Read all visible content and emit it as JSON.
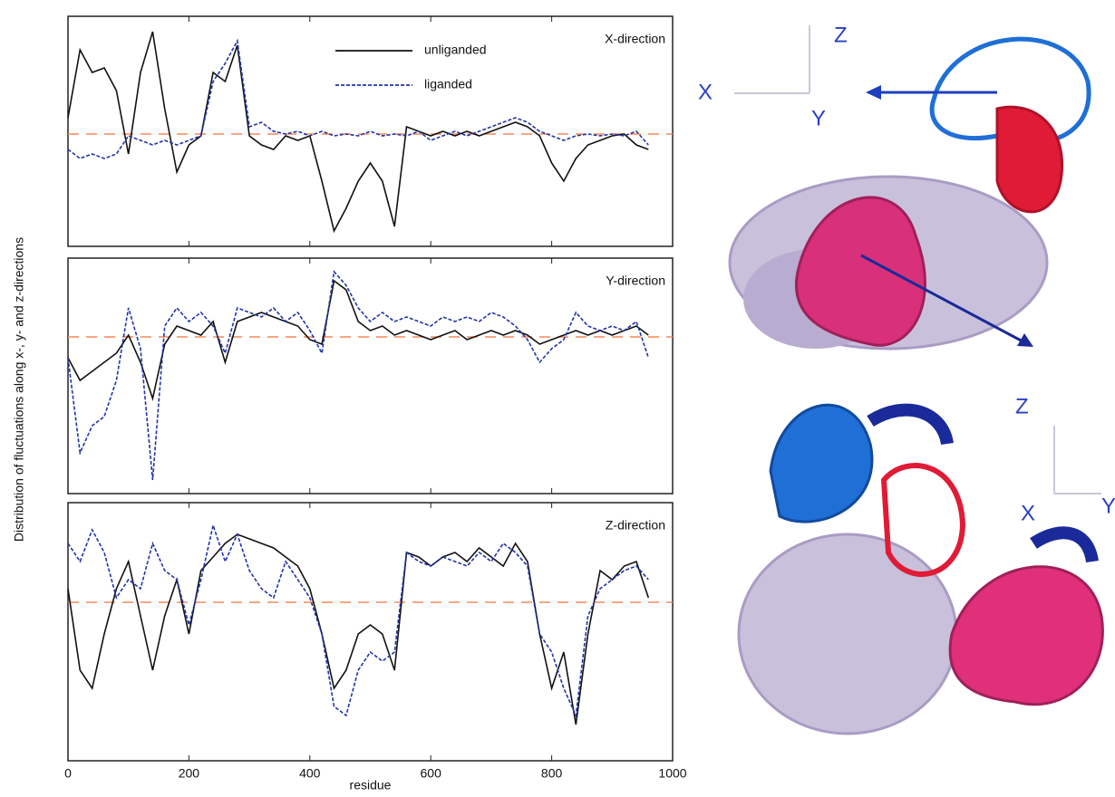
{
  "chart_data": [
    {
      "type": "line",
      "title": "X-direction",
      "x": [
        0,
        20,
        40,
        60,
        80,
        100,
        120,
        140,
        160,
        180,
        200,
        220,
        240,
        260,
        280,
        300,
        320,
        340,
        360,
        380,
        400,
        420,
        440,
        460,
        480,
        500,
        520,
        540,
        560,
        580,
        600,
        620,
        640,
        660,
        680,
        700,
        720,
        740,
        760,
        780,
        800,
        820,
        840,
        860,
        880,
        900,
        920,
        940,
        960
      ],
      "xlim": [
        0,
        1000
      ],
      "ylim": [
        -1.24,
        1.3
      ],
      "hline": 0,
      "hline_color": "#f08a5a",
      "legend": "upper center",
      "series": [
        {
          "name": "unliganded",
          "color": "#111111",
          "linestyle": "solid",
          "values": [
            0.18,
            0.93,
            0.68,
            0.73,
            0.48,
            -0.22,
            0.68,
            1.13,
            0.28,
            -0.42,
            -0.12,
            -0.02,
            0.68,
            0.58,
            0.98,
            -0.02,
            -0.12,
            -0.17,
            -0.02,
            -0.07,
            -0.02,
            -0.52,
            -1.07,
            -0.82,
            -0.52,
            -0.32,
            -0.52,
            -1.02,
            0.08,
            0.03,
            -0.02,
            0.03,
            -0.02,
            0.03,
            -0.02,
            0.03,
            0.08,
            0.13,
            0.08,
            -0.02,
            -0.32,
            -0.52,
            -0.27,
            -0.12,
            -0.07,
            -0.02,
            0,
            -0.12,
            -0.17
          ]
        },
        {
          "name": "liganded",
          "color": "#2233aa",
          "linestyle": "dashed",
          "values": [
            -0.17,
            -0.27,
            -0.22,
            -0.27,
            -0.22,
            -0.02,
            -0.07,
            -0.12,
            -0.07,
            -0.12,
            -0.07,
            -0.02,
            0.58,
            0.78,
            1.03,
            0.08,
            0.13,
            0.03,
            0,
            0.03,
            -0.02,
            0.03,
            -0.02,
            0,
            -0.02,
            0.03,
            -0.02,
            0,
            -0.02,
            0.03,
            -0.07,
            -0.02,
            0.03,
            -0.02,
            0.03,
            0.08,
            0.13,
            0.18,
            0.13,
            0.03,
            -0.02,
            -0.07,
            -0.02,
            0,
            -0.02,
            0,
            -0.02,
            0.03,
            -0.12
          ]
        }
      ]
    },
    {
      "type": "line",
      "title": "Y-direction",
      "ylabel": "Distribution of fluctuations along x-, y- and z-directions",
      "x": [
        0,
        20,
        40,
        60,
        80,
        100,
        120,
        140,
        160,
        180,
        200,
        220,
        240,
        260,
        280,
        300,
        320,
        340,
        360,
        380,
        400,
        420,
        440,
        460,
        480,
        500,
        520,
        540,
        560,
        580,
        600,
        620,
        640,
        660,
        680,
        700,
        720,
        740,
        760,
        780,
        800,
        820,
        840,
        860,
        880,
        900,
        920,
        940,
        960
      ],
      "xlim": [
        0,
        1000
      ],
      "ylim": [
        -1.73,
        0.87
      ],
      "hline": 0,
      "hline_color": "#f08a5a",
      "series": [
        {
          "color": "#111111",
          "linestyle": "solid",
          "values": [
            -0.23,
            -0.48,
            -0.38,
            -0.28,
            -0.18,
            0.02,
            -0.28,
            -0.68,
            -0.08,
            0.12,
            0.07,
            0.02,
            0.17,
            -0.28,
            0.17,
            0.22,
            0.27,
            0.22,
            0.17,
            0.12,
            -0.03,
            -0.08,
            0.62,
            0.52,
            0.17,
            0.07,
            0.12,
            0.02,
            0.07,
            0.02,
            -0.03,
            0.02,
            0.07,
            -0.03,
            0.02,
            0.07,
            0.02,
            0.07,
            0.02,
            -0.08,
            -0.03,
            0.02,
            0.07,
            0.02,
            0.07,
            0.02,
            0.07,
            0.12,
            0.02
          ]
        },
        {
          "color": "#2233aa",
          "linestyle": "dashed",
          "values": [
            -0.23,
            -1.28,
            -0.98,
            -0.88,
            -0.48,
            0.32,
            -0.13,
            -1.58,
            0.12,
            0.32,
            0.17,
            0.27,
            0.12,
            -0.18,
            0.32,
            0.27,
            0.22,
            0.32,
            0.17,
            0.27,
            0.07,
            -0.18,
            0.72,
            0.57,
            0.32,
            0.17,
            0.27,
            0.17,
            0.22,
            0.17,
            0.12,
            0.22,
            0.17,
            0.22,
            0.17,
            0.27,
            0.22,
            0.12,
            -0.03,
            -0.28,
            -0.13,
            -0.03,
            0.27,
            0.12,
            0.07,
            0.12,
            0.07,
            0.17,
            -0.23
          ]
        }
      ]
    },
    {
      "type": "line",
      "title": "Z-direction",
      "xlabel": "residue",
      "x": [
        0,
        20,
        40,
        60,
        80,
        100,
        120,
        140,
        160,
        180,
        200,
        220,
        240,
        260,
        280,
        300,
        320,
        340,
        360,
        380,
        400,
        420,
        440,
        460,
        480,
        500,
        520,
        540,
        560,
        580,
        600,
        620,
        640,
        660,
        680,
        700,
        720,
        740,
        760,
        780,
        800,
        820,
        840,
        860,
        880,
        900,
        920,
        940,
        960
      ],
      "xlim": [
        0,
        1000
      ],
      "xticks": [
        0,
        200,
        400,
        600,
        800,
        1000
      ],
      "ylim": [
        -1.75,
        1.1
      ],
      "hline": 0,
      "hline_color": "#f08a5a",
      "series": [
        {
          "color": "#111111",
          "linestyle": "solid",
          "values": [
            0.15,
            -0.75,
            -0.95,
            -0.35,
            0.15,
            0.45,
            -0.15,
            -0.75,
            -0.15,
            0.25,
            -0.35,
            0.35,
            0.5,
            0.65,
            0.75,
            0.7,
            0.65,
            0.6,
            0.5,
            0.4,
            0.15,
            -0.35,
            -0.95,
            -0.75,
            -0.35,
            -0.25,
            -0.35,
            -0.75,
            0.55,
            0.5,
            0.4,
            0.5,
            0.55,
            0.45,
            0.6,
            0.5,
            0.4,
            0.65,
            0.45,
            -0.35,
            -0.95,
            -0.55,
            -1.35,
            -0.35,
            0.35,
            0.25,
            0.4,
            0.45,
            0.05
          ]
        },
        {
          "color": "#2233aa",
          "linestyle": "dashed",
          "values": [
            0.65,
            0.45,
            0.8,
            0.55,
            0.05,
            0.25,
            0.15,
            0.65,
            0.35,
            0.25,
            -0.25,
            0.25,
            0.85,
            0.45,
            0.75,
            0.35,
            0.15,
            0.05,
            0.45,
            0.25,
            0.05,
            -0.35,
            -1.15,
            -1.25,
            -0.75,
            -0.55,
            -0.65,
            -0.55,
            0.55,
            0.45,
            0.4,
            0.5,
            0.45,
            0.4,
            0.55,
            0.45,
            0.65,
            0.55,
            0.4,
            -0.35,
            -0.55,
            -0.95,
            -1.25,
            -0.15,
            0.15,
            0.25,
            0.35,
            0.4,
            0.25
          ]
        }
      ]
    }
  ],
  "structures": [
    {
      "axes": {
        "x": "X",
        "y": "Y",
        "z": "Z"
      }
    },
    {
      "axes": {
        "x": "X",
        "y": "Y",
        "z": "Z"
      }
    }
  ]
}
